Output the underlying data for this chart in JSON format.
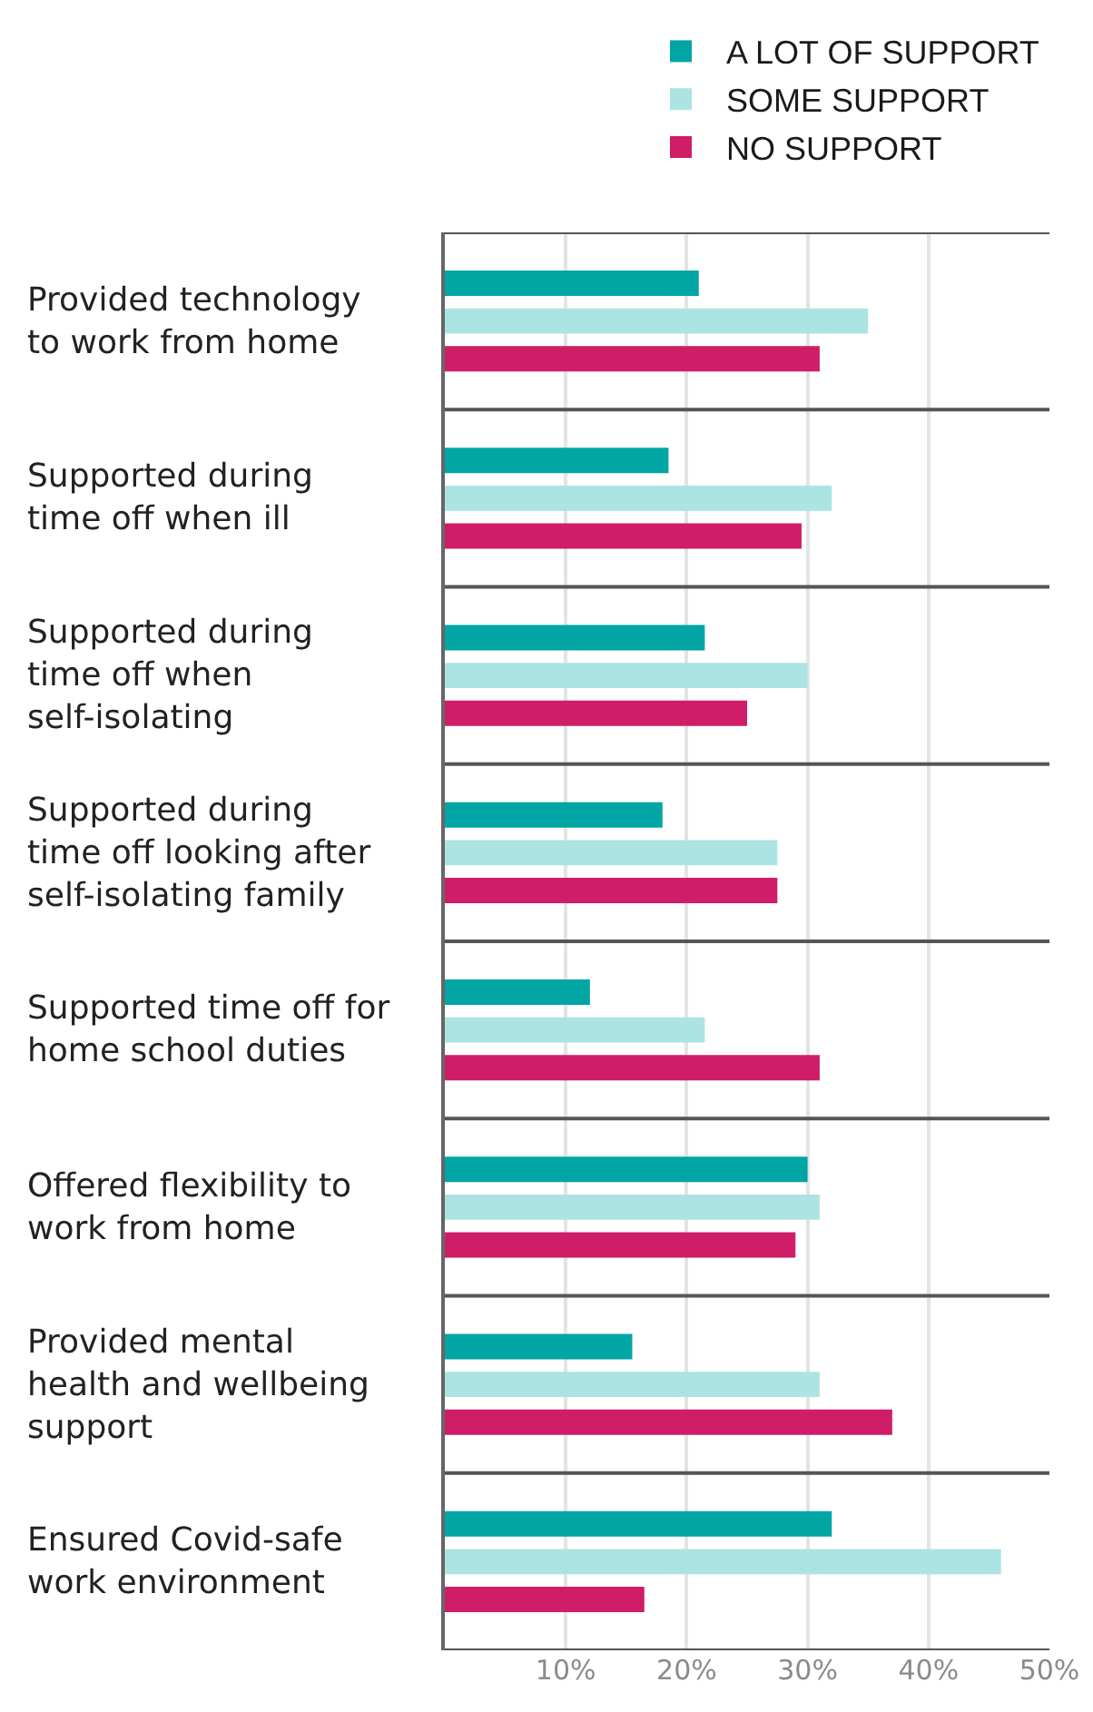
{
  "chart_data": {
    "type": "bar",
    "orientation": "horizontal",
    "categories": [
      "Provided technology\nto work from home",
      "Supported during\ntime off when ill",
      "Supported during\ntime off when\nself-isolating",
      "Supported during\ntime off looking after\nself-isolating family",
      "Supported time off for\nhome school duties",
      "Offered flexibility to\nwork from home",
      "Provided mental\nhealth and wellbeing\nsupport",
      "Ensured Covid-safe\nwork environment"
    ],
    "series": [
      {
        "name": "A LOT OF SUPPORT",
        "color": "#00a5a4",
        "values": [
          21,
          18.5,
          21.5,
          18,
          12,
          30,
          15.5,
          32
        ]
      },
      {
        "name": "SOME SUPPORT",
        "color": "#abe4e2",
        "values": [
          35,
          32,
          30,
          27.5,
          21.5,
          31,
          31,
          46
        ]
      },
      {
        "name": "NO SUPPORT",
        "color": "#cf1d68",
        "values": [
          31,
          29.5,
          25,
          27.5,
          31,
          29,
          37,
          16.5
        ]
      }
    ],
    "xlim": [
      0,
      50
    ],
    "xticks": [
      {
        "value": 10,
        "label": "10%"
      },
      {
        "value": 20,
        "label": "20%"
      },
      {
        "value": 30,
        "label": "30%"
      },
      {
        "value": 40,
        "label": "40%"
      },
      {
        "value": 50,
        "label": "50%"
      }
    ],
    "grid": true,
    "legend": "top right"
  }
}
